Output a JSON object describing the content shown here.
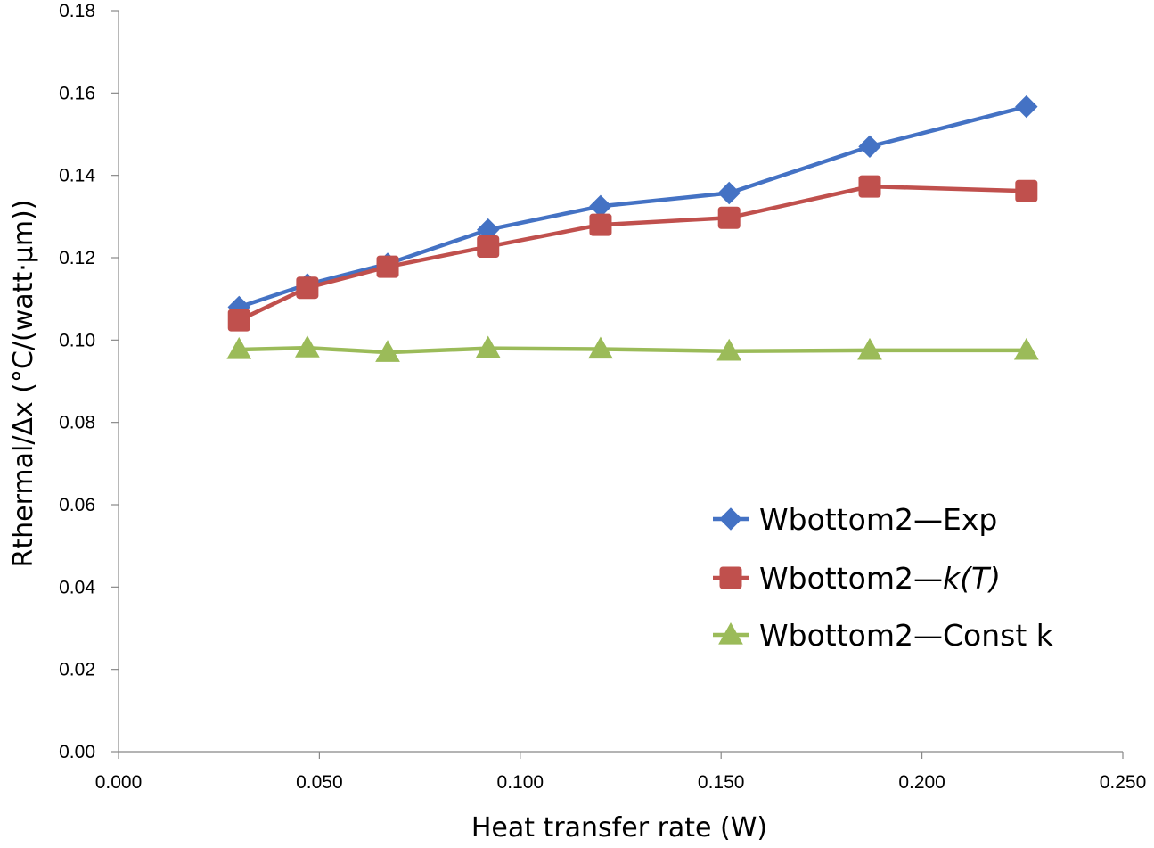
{
  "chart_data": {
    "type": "line",
    "title": "",
    "xlabel": "Heat transfer rate (W)",
    "ylabel": "Rthermal/Δx (°C/(watt·µm))",
    "xlim": [
      0,
      0.25
    ],
    "ylim": [
      0,
      0.18
    ],
    "x_ticks": [
      "0.000",
      "0.050",
      "0.100",
      "0.150",
      "0.200",
      "0.250"
    ],
    "y_ticks": [
      "0.00",
      "0.02",
      "0.04",
      "0.06",
      "0.08",
      "0.10",
      "0.12",
      "0.14",
      "0.16",
      "0.18"
    ],
    "grid": false,
    "legend_position": "right",
    "series": [
      {
        "name": "Wbottom2—Exp",
        "name_prefix": "Wbottom2—",
        "name_suffix": "Exp",
        "name_suffix_italic": false,
        "color": "#4472c4",
        "marker": "diamond",
        "x": [
          0.03,
          0.047,
          0.067,
          0.092,
          0.12,
          0.152,
          0.187,
          0.226
        ],
        "y": [
          0.108,
          0.1135,
          0.1185,
          0.1268,
          0.1325,
          0.1357,
          0.147,
          0.1567
        ]
      },
      {
        "name": "Wbottom2—k(T)",
        "name_prefix": "Wbottom2—",
        "name_suffix": "k(T)",
        "name_suffix_italic": true,
        "color": "#c0504d",
        "marker": "square",
        "x": [
          0.03,
          0.047,
          0.067,
          0.092,
          0.12,
          0.152,
          0.187,
          0.226
        ],
        "y": [
          0.1048,
          0.1127,
          0.1178,
          0.1227,
          0.128,
          0.1297,
          0.1373,
          0.1362
        ]
      },
      {
        "name": "Wbottom2—Const k",
        "name_prefix": "Wbottom2—",
        "name_suffix": "Const k",
        "name_suffix_italic": false,
        "color": "#9bbb59",
        "marker": "triangle",
        "x": [
          0.03,
          0.047,
          0.067,
          0.092,
          0.12,
          0.152,
          0.187,
          0.226
        ],
        "y": [
          0.0977,
          0.0981,
          0.097,
          0.098,
          0.0978,
          0.0973,
          0.0975,
          0.0975
        ]
      }
    ]
  }
}
